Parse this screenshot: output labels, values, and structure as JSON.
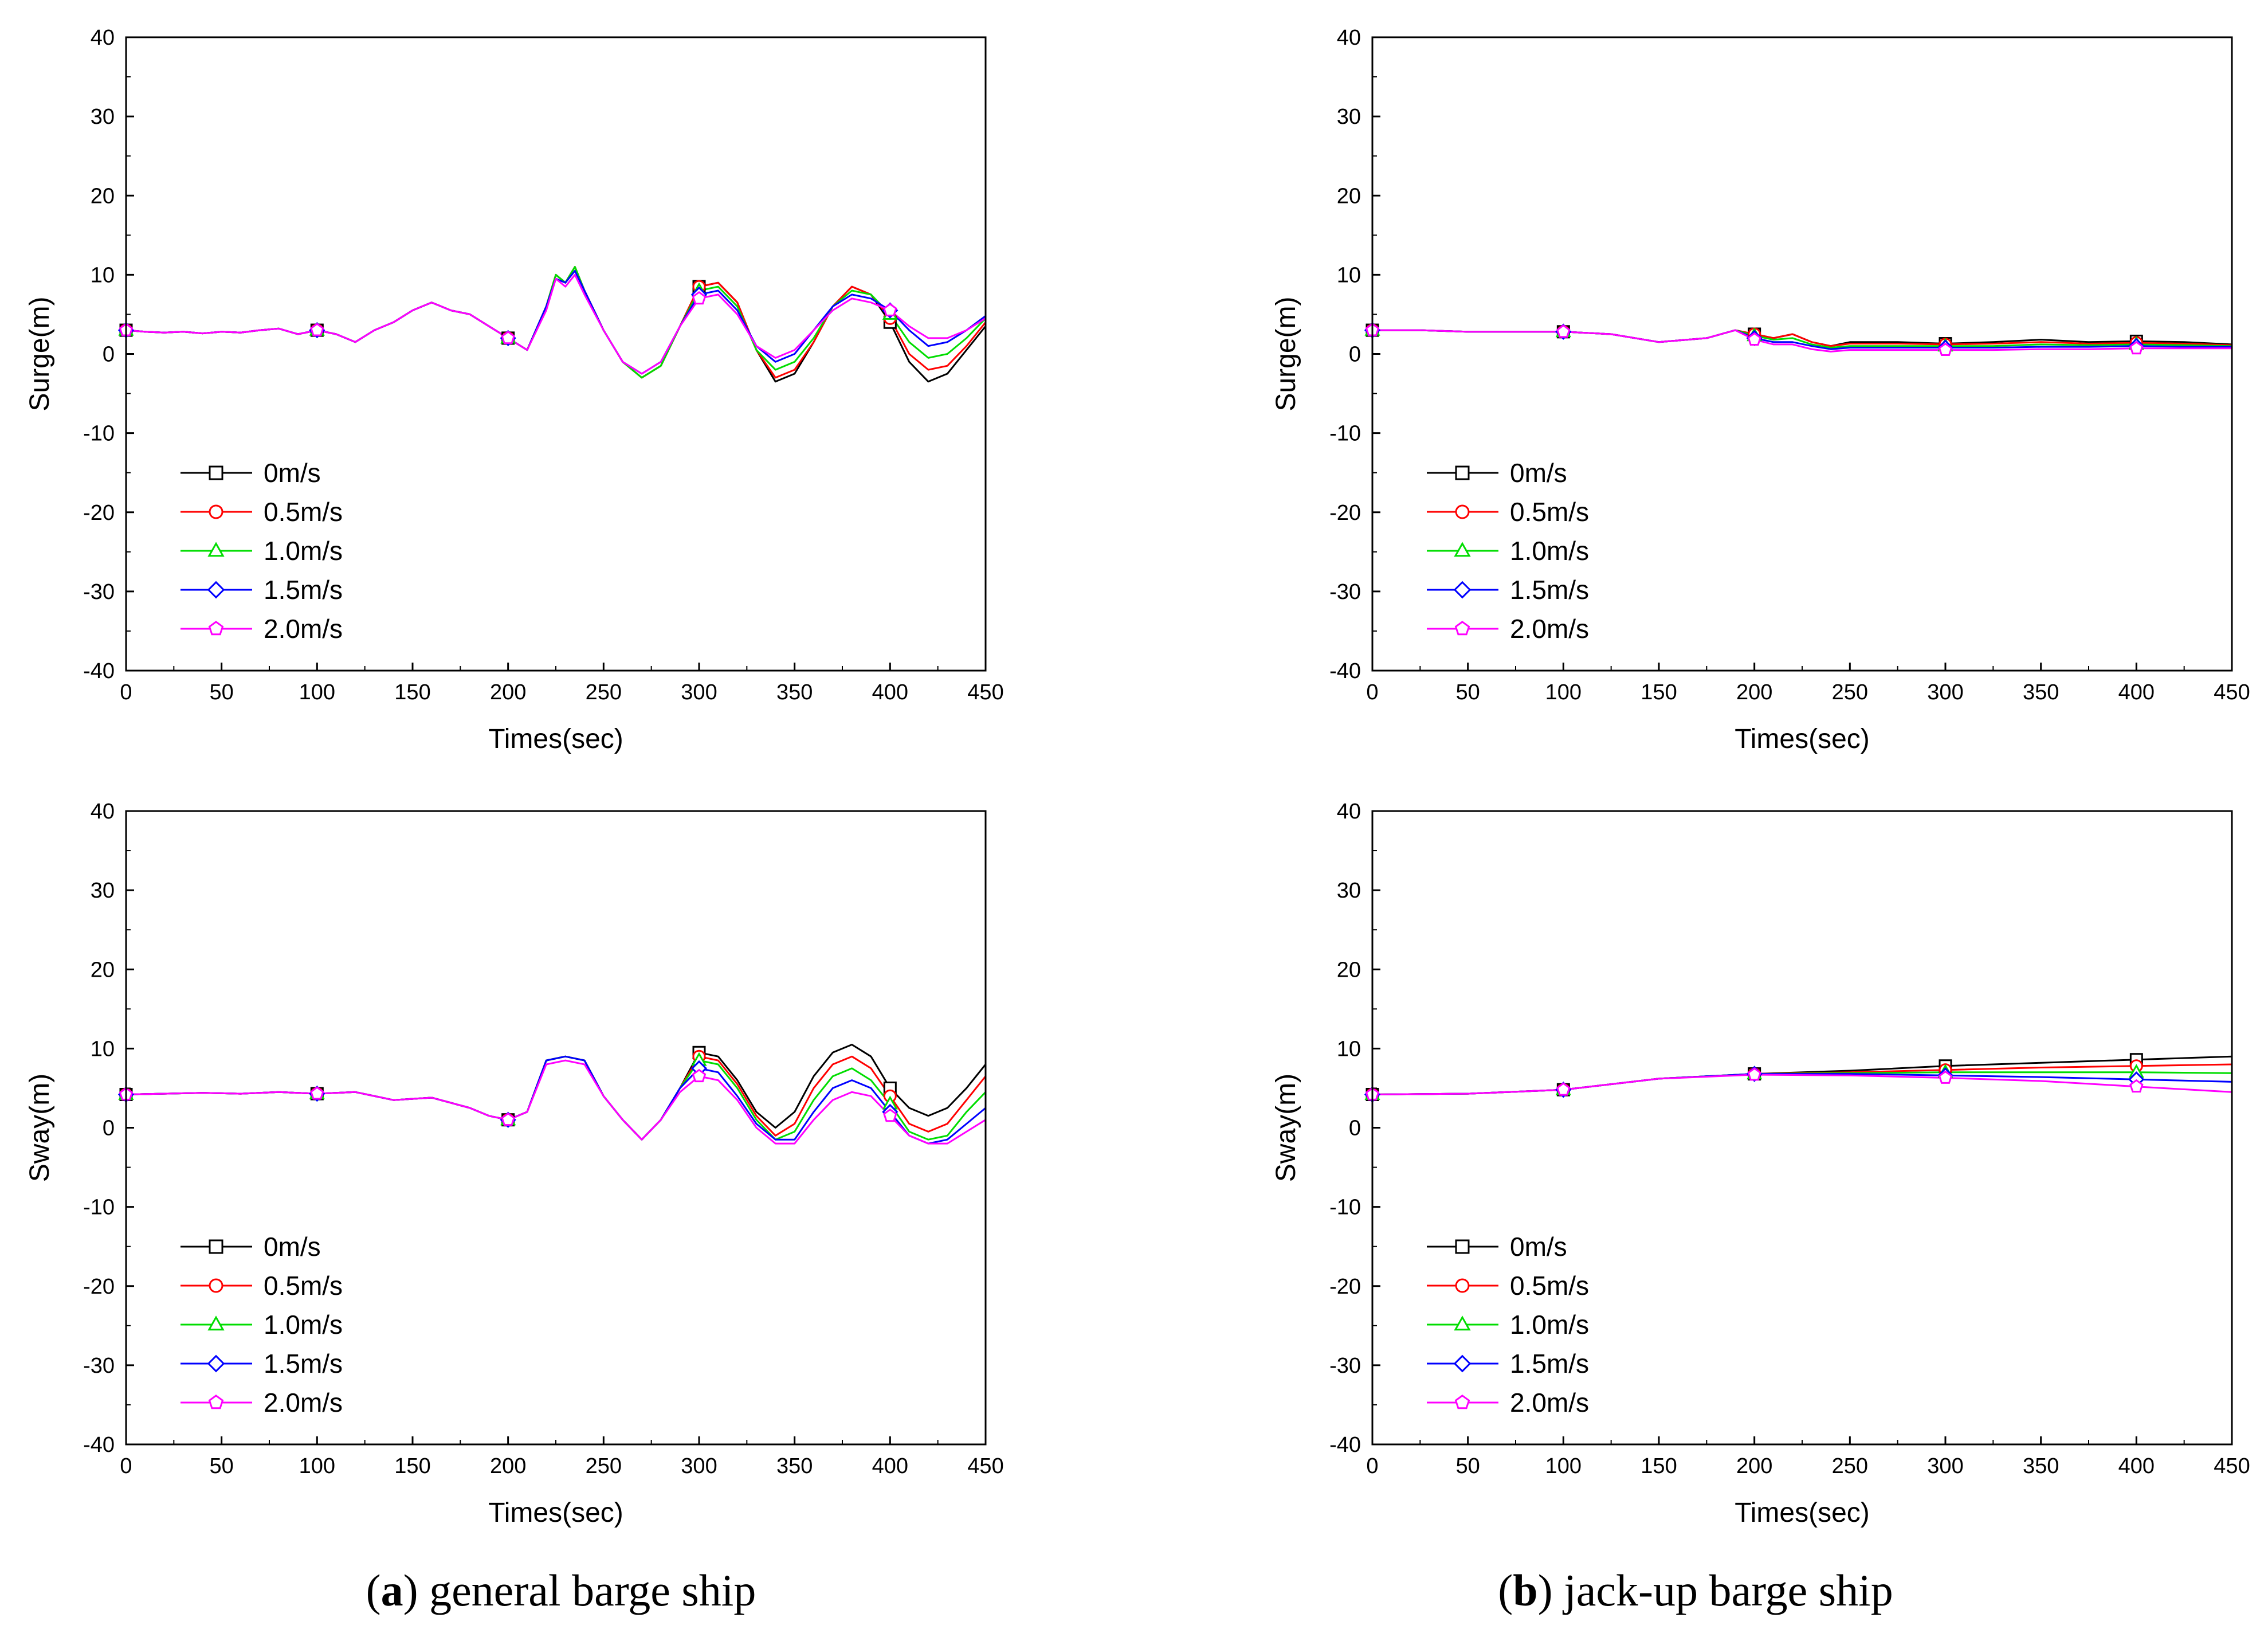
{
  "colors": {
    "s0": "#000000",
    "s05": "#ff0000",
    "s10": "#00dd00",
    "s15": "#0000ff",
    "s20": "#ff00ff"
  },
  "legend": [
    "0m/s",
    "0.5m/s",
    "1.0m/s",
    "1.5m/s",
    "2.0m/s"
  ],
  "captions": {
    "a": {
      "letter": "a",
      "text": " general barge ship"
    },
    "b": {
      "letter": "b",
      "text": " jack-up barge ship"
    }
  },
  "chart_data": [
    {
      "id": "a-surge",
      "type": "line",
      "panel": "(a) general barge ship",
      "xlabel": "Times(sec)",
      "ylabel": "Surge(m)",
      "xlim": [
        0,
        450
      ],
      "ylim": [
        -40,
        40
      ],
      "xticks": [
        0,
        50,
        100,
        150,
        200,
        250,
        300,
        350,
        400,
        450
      ],
      "yticks": [
        -40,
        -30,
        -20,
        -10,
        0,
        10,
        20,
        30,
        40
      ],
      "x": [
        0,
        10,
        20,
        30,
        40,
        50,
        60,
        70,
        80,
        90,
        100,
        110,
        120,
        130,
        140,
        150,
        160,
        170,
        180,
        190,
        200,
        210,
        220,
        225,
        230,
        235,
        240,
        250,
        260,
        270,
        280,
        290,
        300,
        310,
        320,
        330,
        340,
        350,
        360,
        370,
        380,
        390,
        400,
        410,
        420,
        430,
        440,
        450
      ],
      "marker_x": [
        0,
        100,
        200,
        300,
        400
      ],
      "series": [
        {
          "name": "0m/s",
          "marker": "square",
          "values": [
            3,
            2.8,
            2.7,
            2.8,
            2.6,
            2.8,
            2.7,
            3.0,
            3.2,
            2.5,
            3.0,
            2.5,
            1.5,
            3.0,
            4.0,
            5.5,
            6.5,
            5.5,
            5.0,
            3.5,
            2.0,
            0.5,
            6.0,
            10.0,
            9.0,
            11.0,
            8.0,
            3.0,
            -1.0,
            -3.0,
            -1.5,
            3.5,
            8.5,
            9.0,
            6.5,
            0.5,
            -3.5,
            -2.5,
            1.5,
            6.0,
            8.5,
            7.5,
            4.0,
            -1.0,
            -3.5,
            -2.5,
            0.5,
            3.5
          ]
        },
        {
          "name": "0.5m/s",
          "marker": "circle",
          "values": [
            3,
            2.8,
            2.7,
            2.8,
            2.6,
            2.8,
            2.7,
            3.0,
            3.2,
            2.5,
            3.0,
            2.5,
            1.5,
            3.0,
            4.0,
            5.5,
            6.5,
            5.5,
            5.0,
            3.5,
            2.0,
            0.5,
            6.0,
            10.0,
            9.0,
            11.0,
            8.0,
            3.0,
            -1.0,
            -3.0,
            -1.5,
            3.5,
            8.5,
            9.0,
            6.5,
            0.5,
            -3.0,
            -2.0,
            1.5,
            6.0,
            8.5,
            7.5,
            4.5,
            0.0,
            -2.0,
            -1.5,
            1.0,
            4.0
          ]
        },
        {
          "name": "1.0m/s",
          "marker": "triangle",
          "values": [
            3,
            2.8,
            2.7,
            2.8,
            2.6,
            2.8,
            2.7,
            3.0,
            3.2,
            2.5,
            3.0,
            2.5,
            1.5,
            3.0,
            4.0,
            5.5,
            6.5,
            5.5,
            5.0,
            3.5,
            2.0,
            0.5,
            6.0,
            10.0,
            9.0,
            11.0,
            8.0,
            3.0,
            -1.0,
            -3.0,
            -1.5,
            3.5,
            8.0,
            8.5,
            6.0,
            0.5,
            -2.0,
            -1.0,
            2.0,
            6.0,
            8.0,
            7.5,
            5.0,
            1.5,
            -0.5,
            0.0,
            2.0,
            4.5
          ]
        },
        {
          "name": "1.5m/s",
          "marker": "diamond",
          "values": [
            3,
            2.8,
            2.7,
            2.8,
            2.6,
            2.8,
            2.7,
            3.0,
            3.2,
            2.5,
            3.0,
            2.5,
            1.5,
            3.0,
            4.0,
            5.5,
            6.5,
            5.5,
            5.0,
            3.5,
            2.0,
            0.5,
            6.0,
            9.5,
            9.0,
            10.5,
            8.0,
            3.0,
            -1.0,
            -2.5,
            -1.0,
            3.5,
            7.5,
            8.0,
            5.5,
            1.0,
            -1.0,
            0.0,
            3.0,
            6.0,
            7.5,
            7.0,
            5.5,
            3.0,
            1.0,
            1.5,
            3.0,
            4.8
          ]
        },
        {
          "name": "2.0m/s",
          "marker": "pentagon",
          "values": [
            3,
            2.8,
            2.7,
            2.8,
            2.6,
            2.8,
            2.7,
            3.0,
            3.2,
            2.5,
            3.0,
            2.5,
            1.5,
            3.0,
            4.0,
            5.5,
            6.5,
            5.5,
            5.0,
            3.5,
            2.0,
            0.5,
            5.5,
            9.5,
            8.5,
            10.0,
            7.5,
            3.0,
            -1.0,
            -2.5,
            -1.0,
            3.5,
            7.0,
            7.5,
            5.0,
            1.0,
            -0.5,
            0.5,
            3.0,
            5.5,
            7.0,
            6.5,
            5.5,
            3.5,
            2.0,
            2.0,
            3.0,
            4.5
          ]
        }
      ]
    },
    {
      "id": "b-surge",
      "type": "line",
      "panel": "(b) jack-up barge ship",
      "xlabel": "Times(sec)",
      "ylabel": "Surge(m)",
      "xlim": [
        0,
        450
      ],
      "ylim": [
        -40,
        40
      ],
      "xticks": [
        0,
        50,
        100,
        150,
        200,
        250,
        300,
        350,
        400,
        450
      ],
      "yticks": [
        -40,
        -30,
        -20,
        -10,
        0,
        10,
        20,
        30,
        40
      ],
      "x": [
        0,
        25,
        50,
        75,
        100,
        125,
        150,
        175,
        190,
        200,
        210,
        220,
        230,
        240,
        250,
        275,
        300,
        325,
        350,
        375,
        400,
        425,
        450
      ],
      "marker_x": [
        0,
        100,
        200,
        300,
        400
      ],
      "series": [
        {
          "name": "0m/s",
          "marker": "square",
          "values": [
            3,
            3,
            2.8,
            2.8,
            2.8,
            2.5,
            1.5,
            2.0,
            3.0,
            2.5,
            2.0,
            2.5,
            1.5,
            1.0,
            1.5,
            1.5,
            1.3,
            1.5,
            1.8,
            1.5,
            1.6,
            1.5,
            1.2
          ]
        },
        {
          "name": "0.5m/s",
          "marker": "circle",
          "values": [
            3,
            3,
            2.8,
            2.8,
            2.8,
            2.5,
            1.5,
            2.0,
            3.0,
            2.5,
            2.0,
            2.5,
            1.5,
            1.0,
            1.3,
            1.3,
            1.2,
            1.3,
            1.5,
            1.3,
            1.4,
            1.3,
            1.1
          ]
        },
        {
          "name": "1.0m/s",
          "marker": "triangle",
          "values": [
            3,
            3,
            2.8,
            2.8,
            2.8,
            2.5,
            1.5,
            2.0,
            3.0,
            2.3,
            1.8,
            2.0,
            1.2,
            0.8,
            1.0,
            1.0,
            1.0,
            1.0,
            1.2,
            1.1,
            1.2,
            1.1,
            1.0
          ]
        },
        {
          "name": "1.5m/s",
          "marker": "diamond",
          "values": [
            3,
            3,
            2.8,
            2.8,
            2.8,
            2.5,
            1.5,
            2.0,
            3.0,
            2.0,
            1.5,
            1.5,
            1.0,
            0.6,
            0.8,
            0.8,
            0.8,
            0.8,
            0.9,
            0.9,
            1.0,
            0.9,
            0.9
          ]
        },
        {
          "name": "2.0m/s",
          "marker": "pentagon",
          "values": [
            3,
            3,
            2.8,
            2.8,
            2.8,
            2.5,
            1.5,
            2.0,
            3.0,
            1.8,
            1.2,
            1.2,
            0.6,
            0.3,
            0.5,
            0.5,
            0.5,
            0.5,
            0.6,
            0.6,
            0.7,
            0.7,
            0.7
          ]
        }
      ]
    },
    {
      "id": "a-sway",
      "type": "line",
      "panel": "(a) general barge ship",
      "xlabel": "Times(sec)",
      "ylabel": "Sway(m)",
      "xlim": [
        0,
        450
      ],
      "ylim": [
        -40,
        40
      ],
      "xticks": [
        0,
        50,
        100,
        150,
        200,
        250,
        300,
        350,
        400,
        450
      ],
      "yticks": [
        -40,
        -30,
        -20,
        -10,
        0,
        10,
        20,
        30,
        40
      ],
      "x": [
        0,
        20,
        40,
        60,
        80,
        100,
        120,
        140,
        160,
        180,
        190,
        200,
        210,
        220,
        230,
        240,
        250,
        260,
        270,
        280,
        290,
        300,
        310,
        320,
        330,
        340,
        350,
        360,
        370,
        380,
        390,
        400,
        410,
        420,
        430,
        440,
        450
      ],
      "marker_x": [
        0,
        100,
        200,
        300,
        400
      ],
      "series": [
        {
          "name": "0m/s",
          "marker": "square",
          "values": [
            4.2,
            4.3,
            4.4,
            4.3,
            4.5,
            4.3,
            4.5,
            3.5,
            3.8,
            2.5,
            1.5,
            1.0,
            2.0,
            8.5,
            9.0,
            8.5,
            4.0,
            1.0,
            -1.5,
            1.0,
            5.0,
            9.5,
            9.0,
            6.0,
            2.0,
            0.0,
            2.0,
            6.5,
            9.5,
            10.5,
            9.0,
            5.0,
            2.5,
            1.5,
            2.5,
            5.0,
            8.0
          ]
        },
        {
          "name": "0.5m/s",
          "marker": "circle",
          "values": [
            4.2,
            4.3,
            4.4,
            4.3,
            4.5,
            4.3,
            4.5,
            3.5,
            3.8,
            2.5,
            1.5,
            1.0,
            2.0,
            8.5,
            9.0,
            8.5,
            4.0,
            1.0,
            -1.5,
            1.0,
            5.0,
            9.0,
            8.5,
            5.5,
            1.5,
            -1.0,
            0.5,
            5.0,
            8.0,
            9.0,
            7.5,
            4.0,
            0.5,
            -0.5,
            0.5,
            3.5,
            6.5
          ]
        },
        {
          "name": "1.0m/s",
          "marker": "triangle",
          "values": [
            4.2,
            4.3,
            4.4,
            4.3,
            4.5,
            4.3,
            4.5,
            3.5,
            3.8,
            2.5,
            1.5,
            1.0,
            2.0,
            8.5,
            9.0,
            8.5,
            4.0,
            1.0,
            -1.5,
            1.0,
            5.0,
            8.5,
            8.0,
            5.0,
            1.0,
            -1.5,
            -0.5,
            3.5,
            6.5,
            7.5,
            6.0,
            3.0,
            -0.5,
            -1.5,
            -1.0,
            2.0,
            4.5
          ]
        },
        {
          "name": "1.5m/s",
          "marker": "diamond",
          "values": [
            4.2,
            4.3,
            4.4,
            4.3,
            4.5,
            4.3,
            4.5,
            3.5,
            3.8,
            2.5,
            1.5,
            1.0,
            2.0,
            8.5,
            9.0,
            8.5,
            4.0,
            1.0,
            -1.5,
            1.0,
            5.0,
            7.5,
            7.0,
            4.0,
            0.5,
            -1.5,
            -1.5,
            2.0,
            5.0,
            6.0,
            5.0,
            2.0,
            -1.0,
            -2.0,
            -1.5,
            0.5,
            2.5
          ]
        },
        {
          "name": "2.0m/s",
          "marker": "pentagon",
          "values": [
            4.2,
            4.3,
            4.4,
            4.3,
            4.5,
            4.3,
            4.5,
            3.5,
            3.8,
            2.5,
            1.5,
            1.0,
            2.0,
            8.0,
            8.5,
            8.0,
            4.0,
            1.0,
            -1.5,
            1.0,
            4.5,
            6.5,
            6.0,
            3.5,
            0.0,
            -2.0,
            -2.0,
            1.0,
            3.5,
            4.5,
            4.0,
            1.5,
            -1.0,
            -2.0,
            -2.0,
            -0.5,
            1.0
          ]
        }
      ]
    },
    {
      "id": "b-sway",
      "type": "line",
      "panel": "(b) jack-up barge ship",
      "xlabel": "Times(sec)",
      "ylabel": "Sway(m)",
      "xlim": [
        0,
        450
      ],
      "ylim": [
        -40,
        40
      ],
      "xticks": [
        0,
        50,
        100,
        150,
        200,
        250,
        300,
        350,
        400,
        450
      ],
      "yticks": [
        -40,
        -30,
        -20,
        -10,
        0,
        10,
        20,
        30,
        40
      ],
      "x": [
        0,
        50,
        100,
        150,
        200,
        250,
        300,
        350,
        400,
        450
      ],
      "marker_x": [
        0,
        100,
        200,
        300,
        400
      ],
      "series": [
        {
          "name": "0m/s",
          "marker": "square",
          "values": [
            4.2,
            4.3,
            4.8,
            6.2,
            6.8,
            7.2,
            7.8,
            8.2,
            8.6,
            9.0
          ]
        },
        {
          "name": "0.5m/s",
          "marker": "circle",
          "values": [
            4.2,
            4.3,
            4.8,
            6.2,
            6.8,
            7.0,
            7.3,
            7.6,
            7.8,
            8.0
          ]
        },
        {
          "name": "1.0m/s",
          "marker": "triangle",
          "values": [
            4.2,
            4.3,
            4.8,
            6.2,
            6.8,
            6.9,
            7.0,
            7.0,
            7.0,
            6.9
          ]
        },
        {
          "name": "1.5m/s",
          "marker": "diamond",
          "values": [
            4.2,
            4.3,
            4.8,
            6.2,
            6.8,
            6.8,
            6.6,
            6.4,
            6.1,
            5.8
          ]
        },
        {
          "name": "2.0m/s",
          "marker": "pentagon",
          "values": [
            4.2,
            4.3,
            4.8,
            6.2,
            6.7,
            6.6,
            6.3,
            5.9,
            5.2,
            4.5
          ]
        }
      ]
    }
  ]
}
